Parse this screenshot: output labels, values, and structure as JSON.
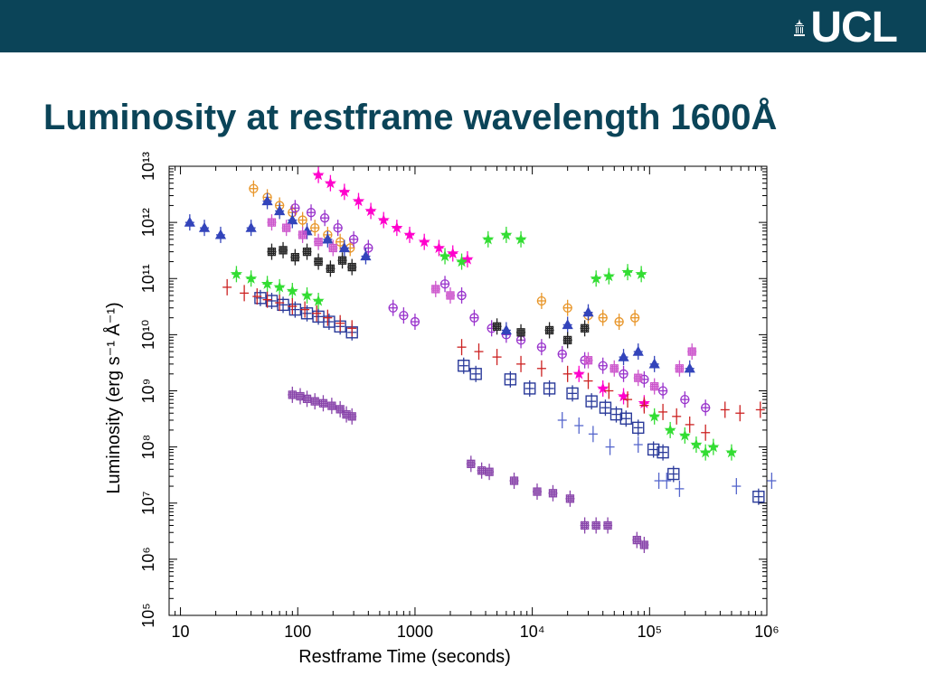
{
  "header": {
    "logo_text": "UCL",
    "logo_icon": "portico-icon",
    "bg_color": "#0b4458"
  },
  "slide": {
    "title": "Luminosity at restframe wavelength 1600Å"
  },
  "chart_data": {
    "type": "scatter",
    "xlabel": "Restframe Time (seconds)",
    "ylabel": "Luminosity (erg s⁻¹ Å⁻¹)",
    "xscale": "log",
    "yscale": "log",
    "xlim": [
      8,
      1000000
    ],
    "ylim": [
      100000,
      10000000000000
    ],
    "xticks": [
      {
        "v": 10,
        "label": "10"
      },
      {
        "v": 100,
        "label": "100"
      },
      {
        "v": 1000,
        "label": "1000"
      },
      {
        "v": 10000,
        "label": "10⁴"
      },
      {
        "v": 100000,
        "label": "10⁵"
      },
      {
        "v": 1000000,
        "label": "10⁶"
      }
    ],
    "yticks": [
      {
        "v": 100000,
        "label": "10⁵"
      },
      {
        "v": 1000000,
        "label": "10⁶"
      },
      {
        "v": 10000000,
        "label": "10⁷"
      },
      {
        "v": 100000000,
        "label": "10⁸"
      },
      {
        "v": 1000000000,
        "label": "10⁹"
      },
      {
        "v": 10000000000,
        "label": "10¹⁰"
      },
      {
        "v": 100000000000,
        "label": "10¹¹"
      },
      {
        "v": 1000000000000,
        "label": "10¹²"
      },
      {
        "v": 10000000000000,
        "label": "10¹³"
      }
    ],
    "series": [
      {
        "color": "#2a3a9a",
        "marker": "square",
        "values": [
          [
            48,
            45000000000.0
          ],
          [
            60,
            40000000000.0
          ],
          [
            75,
            34000000000.0
          ],
          [
            95,
            28000000000.0
          ],
          [
            120,
            24000000000.0
          ],
          [
            150,
            21000000000.0
          ],
          [
            185,
            17000000000.0
          ],
          [
            230,
            14000000000.0
          ],
          [
            290,
            11000000000.0
          ],
          [
            2600,
            2800000000.0
          ],
          [
            3300,
            2000000000.0
          ],
          [
            6500,
            1600000000.0
          ],
          [
            9500,
            1100000000.0
          ],
          [
            14000,
            1100000000.0
          ],
          [
            22000,
            900000000.0
          ],
          [
            32000,
            650000000.0
          ],
          [
            42000,
            500000000.0
          ],
          [
            52000,
            380000000.0
          ],
          [
            63000,
            320000000.0
          ],
          [
            80000,
            220000000.0
          ],
          [
            108000,
            90000000.0
          ],
          [
            130000,
            80000000.0
          ],
          [
            160000,
            33000000.0
          ],
          [
            850000,
            13000000.0
          ]
        ]
      },
      {
        "color": "#ff00cc",
        "marker": "star",
        "values": [
          [
            150,
            7000000000000.0
          ],
          [
            190,
            5000000000000.0
          ],
          [
            250,
            3500000000000.0
          ],
          [
            330,
            2400000000000.0
          ],
          [
            420,
            1600000000000.0
          ],
          [
            540,
            1100000000000.0
          ],
          [
            700,
            800000000000.0
          ],
          [
            900,
            600000000000.0
          ],
          [
            1200,
            450000000000.0
          ],
          [
            1600,
            350000000000.0
          ],
          [
            2100,
            280000000000.0
          ],
          [
            2800,
            220000000000.0
          ],
          [
            25000,
            2000000000.0
          ],
          [
            40000,
            1100000000.0
          ],
          [
            60000,
            800000000.0
          ],
          [
            90000,
            600000000.0
          ]
        ]
      },
      {
        "color": "#e8962a",
        "marker": "circle",
        "values": [
          [
            42,
            4000000000000.0
          ],
          [
            55,
            2800000000000.0
          ],
          [
            70,
            2000000000000.0
          ],
          [
            90,
            1500000000000.0
          ],
          [
            110,
            1100000000000.0
          ],
          [
            140,
            800000000000.0
          ],
          [
            180,
            600000000000.0
          ],
          [
            230,
            450000000000.0
          ],
          [
            280,
            350000000000.0
          ],
          [
            12000,
            40000000000.0
          ],
          [
            20000,
            30000000000.0
          ],
          [
            30000,
            22000000000.0
          ],
          [
            40000,
            20000000000.0
          ],
          [
            55000,
            17000000000.0
          ],
          [
            75000,
            20000000000.0
          ]
        ]
      },
      {
        "color": "#33dd33",
        "marker": "star",
        "values": [
          [
            30,
            120000000000.0
          ],
          [
            40,
            100000000000.0
          ],
          [
            55,
            80000000000.0
          ],
          [
            70,
            70000000000.0
          ],
          [
            90,
            60000000000.0
          ],
          [
            120,
            50000000000.0
          ],
          [
            150,
            40000000000.0
          ],
          [
            1800,
            250000000000.0
          ],
          [
            2500,
            200000000000.0
          ],
          [
            4200,
            500000000000.0
          ],
          [
            6000,
            600000000000.0
          ],
          [
            8000,
            500000000000.0
          ],
          [
            35000,
            100000000000.0
          ],
          [
            45000,
            110000000000.0
          ],
          [
            65000,
            130000000000.0
          ],
          [
            85000,
            120000000000.0
          ],
          [
            110000,
            350000000.0
          ],
          [
            150000,
            200000000.0
          ],
          [
            200000,
            160000000.0
          ],
          [
            250000,
            110000000.0
          ],
          [
            300000,
            80000000.0
          ],
          [
            350000,
            100000000.0
          ],
          [
            500000,
            80000000.0
          ]
        ]
      },
      {
        "color": "#cc2222",
        "marker": "plus",
        "values": [
          [
            25,
            70000000000.0
          ],
          [
            35,
            55000000000.0
          ],
          [
            45,
            48000000000.0
          ],
          [
            55,
            42000000000.0
          ],
          [
            70,
            37000000000.0
          ],
          [
            90,
            32000000000.0
          ],
          [
            115,
            28000000000.0
          ],
          [
            145,
            24000000000.0
          ],
          [
            180,
            20000000000.0
          ],
          [
            230,
            16000000000.0
          ],
          [
            290,
            13000000000.0
          ],
          [
            2500,
            6000000000.0
          ],
          [
            3500,
            5000000000.0
          ],
          [
            5000,
            4000000000.0
          ],
          [
            8000,
            3000000000.0
          ],
          [
            12000,
            2500000000.0
          ],
          [
            20000,
            2000000000.0
          ],
          [
            30000,
            1500000000.0
          ],
          [
            45000,
            1000000000.0
          ],
          [
            65000,
            700000000.0
          ],
          [
            90000,
            550000000.0
          ],
          [
            130000,
            420000000.0
          ],
          [
            170000,
            350000000.0
          ],
          [
            220000,
            250000000.0
          ],
          [
            300000,
            180000000.0
          ],
          [
            440000,
            460000000.0
          ],
          [
            590000,
            400000000.0
          ],
          [
            880000,
            460000000.0
          ]
        ]
      },
      {
        "color": "#9933cc",
        "marker": "circle",
        "values": [
          [
            95,
            1800000000000.0
          ],
          [
            130,
            1500000000000.0
          ],
          [
            170,
            1200000000000.0
          ],
          [
            220,
            800000000000.0
          ],
          [
            300,
            500000000000.0
          ],
          [
            400,
            350000000000.0
          ],
          [
            650,
            30000000000.0
          ],
          [
            800,
            22000000000.0
          ],
          [
            1000,
            17000000000.0
          ],
          [
            1800,
            80000000000.0
          ],
          [
            2500,
            50000000000.0
          ],
          [
            3200,
            20000000000.0
          ],
          [
            4500,
            13000000000.0
          ],
          [
            6000,
            10000000000.0
          ],
          [
            8000,
            8000000000.0
          ],
          [
            12000,
            6000000000.0
          ],
          [
            18000,
            4500000000.0
          ],
          [
            28000,
            3500000000.0
          ],
          [
            40000,
            2800000000.0
          ],
          [
            60000,
            2000000000.0
          ],
          [
            90000,
            1600000000.0
          ],
          [
            130000,
            1000000000.0
          ],
          [
            200000,
            700000000.0
          ],
          [
            300000,
            500000000.0
          ]
        ]
      },
      {
        "color": "#3344bb",
        "marker": "triangle",
        "values": [
          [
            12,
            1000000000000.0
          ],
          [
            16,
            800000000000.0
          ],
          [
            22,
            600000000000.0
          ],
          [
            40,
            800000000000.0
          ],
          [
            55,
            2400000000000.0
          ],
          [
            70,
            1600000000000.0
          ],
          [
            90,
            1100000000000.0
          ],
          [
            120,
            700000000000.0
          ],
          [
            180,
            500000000000.0
          ],
          [
            250,
            350000000000.0
          ],
          [
            380,
            250000000000.0
          ],
          [
            6000,
            12000000000.0
          ],
          [
            20000,
            15000000000.0
          ],
          [
            30000,
            25000000000.0
          ],
          [
            60000,
            4000000000.0
          ],
          [
            80000,
            5000000000.0
          ],
          [
            110000,
            3000000000.0
          ],
          [
            220000,
            2500000000.0
          ]
        ]
      },
      {
        "color": "#222222",
        "marker": "square-cross",
        "values": [
          [
            60,
            300000000000.0
          ],
          [
            75,
            320000000000.0
          ],
          [
            95,
            240000000000.0
          ],
          [
            120,
            300000000000.0
          ],
          [
            150,
            200000000000.0
          ],
          [
            190,
            150000000000.0
          ],
          [
            240,
            210000000000.0
          ],
          [
            290,
            160000000000.0
          ],
          [
            5000,
            14000000000.0
          ],
          [
            8000,
            11000000000.0
          ],
          [
            14000,
            12000000000.0
          ],
          [
            20000,
            8000000000.0
          ],
          [
            28000,
            13000000000.0
          ]
        ]
      },
      {
        "color": "#cc55cc",
        "marker": "square-cross",
        "values": [
          [
            60,
            1000000000000.0
          ],
          [
            80,
            800000000000.0
          ],
          [
            110,
            600000000000.0
          ],
          [
            150,
            450000000000.0
          ],
          [
            200,
            350000000000.0
          ],
          [
            1500,
            65000000000.0
          ],
          [
            2000,
            50000000000.0
          ],
          [
            30000,
            3500000000.0
          ],
          [
            50000,
            2500000000.0
          ],
          [
            80000,
            1700000000.0
          ],
          [
            110000,
            1200000000.0
          ],
          [
            180000,
            2500000000.0
          ],
          [
            230000,
            5000000000.0
          ]
        ]
      },
      {
        "color": "#8844aa",
        "marker": "square-cross",
        "values": [
          [
            90,
            850000000.0
          ],
          [
            105,
            800000000.0
          ],
          [
            120,
            720000000.0
          ],
          [
            140,
            650000000.0
          ],
          [
            165,
            600000000.0
          ],
          [
            195,
            540000000.0
          ],
          [
            230,
            470000000.0
          ],
          [
            260,
            380000000.0
          ],
          [
            290,
            350000000.0
          ],
          [
            3000,
            50000000.0
          ],
          [
            3700,
            38000000.0
          ],
          [
            4300,
            36000000.0
          ],
          [
            7000,
            25000000.0
          ],
          [
            11000,
            16000000.0
          ],
          [
            15000,
            15000000.0
          ],
          [
            21000,
            12000000.0
          ],
          [
            28000,
            4000000.0
          ],
          [
            35000,
            4000000.0
          ],
          [
            44000,
            4000000.0
          ],
          [
            78000,
            2200000.0
          ],
          [
            90000,
            1800000.0
          ]
        ]
      },
      {
        "color": "#5566cc",
        "marker": "plus",
        "values": [
          [
            18000,
            300000000.0
          ],
          [
            25000,
            240000000.0
          ],
          [
            33000,
            170000000.0
          ],
          [
            46000,
            100000000.0
          ],
          [
            80000,
            110000000.0
          ],
          [
            120000,
            25000000.0
          ],
          [
            140000,
            25000000.0
          ],
          [
            180000,
            18000000.0
          ],
          [
            550000,
            20000000.0
          ],
          [
            1100000,
            25000000.0
          ]
        ]
      }
    ]
  }
}
